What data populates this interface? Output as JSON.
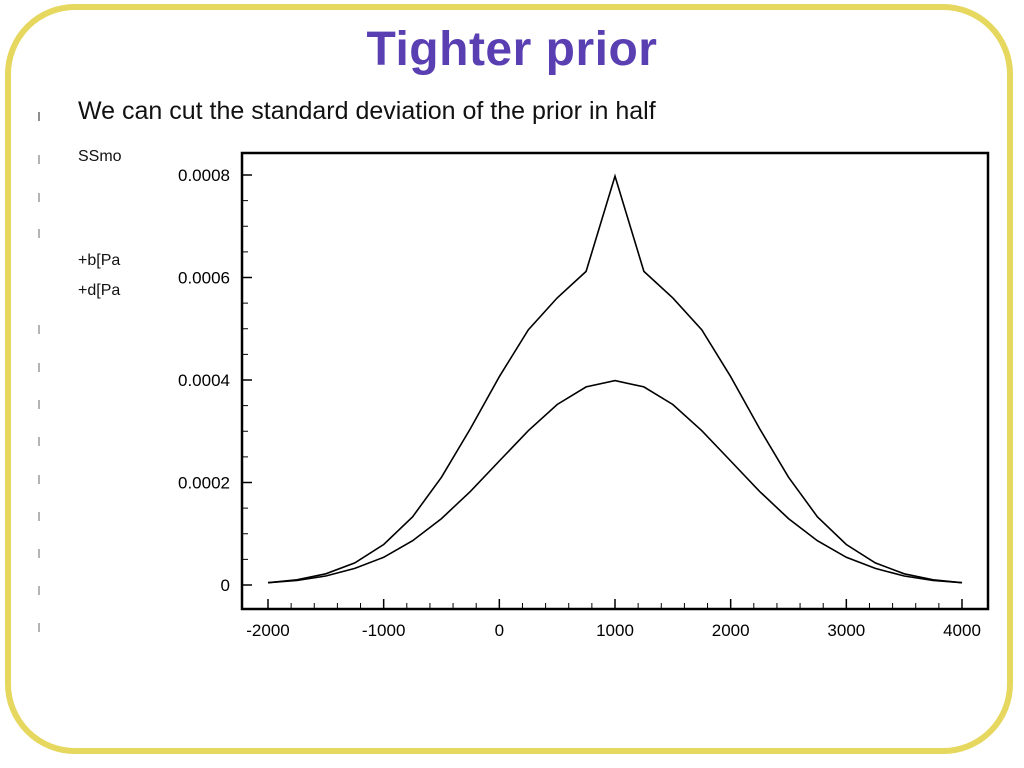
{
  "slide": {
    "title": "Tighter prior",
    "bullet_main": "We can cut the standard deviation of the prior in half",
    "fragments": [
      "SSmo",
      "+b[Pa",
      "+d[Pa"
    ]
  },
  "colors": {
    "title": "#5a3fb3",
    "frame": "#e6d75f",
    "line": "#000000"
  },
  "chart_data": {
    "type": "line",
    "title": "",
    "xlabel": "",
    "ylabel": "",
    "xlim": [
      -2000,
      4000
    ],
    "ylim": [
      0,
      0.0008
    ],
    "x_ticks": [
      -2000,
      -1000,
      0,
      1000,
      2000,
      3000,
      4000
    ],
    "x_tick_labels": [
      "-2000",
      "-1000",
      "0",
      "1000",
      "2000",
      "3000",
      "4000"
    ],
    "y_ticks": [
      0,
      0.0002,
      0.0004,
      0.0006,
      0.0008
    ],
    "y_tick_labels": [
      "0",
      "0.0002",
      "0.0004",
      "0.0006",
      "0.0008"
    ],
    "grid": false,
    "x": [
      -2000,
      -1750,
      -1500,
      -1250,
      -1000,
      -750,
      -500,
      -250,
      0,
      250,
      500,
      750,
      1000,
      1250,
      1500,
      1750,
      2000,
      2250,
      2500,
      2750,
      3000,
      3250,
      3500,
      3750,
      4000
    ],
    "series": [
      {
        "values": [
          4.4e-06,
          1.02e-05,
          2.19e-05,
          4.31e-05,
          7.9e-05,
          0.000133,
          0.0002103,
          0.0003051,
          0.0004065,
          0.000498,
          0.0005601,
          0.000612,
          0.0007979,
          0.000612,
          0.0005601,
          0.000498,
          0.0004065,
          0.0003051,
          0.0002103,
          0.000133,
          7.9e-05,
          4.31e-05,
          2.19e-05,
          1.02e-05,
          4.4e-06
        ]
      },
      {
        "values": [
          4.4e-06,
          8.8e-06,
          1.75e-05,
          3.24e-05,
          5.4e-05,
          8.64e-05,
          0.0001295,
          0.0001826,
          0.000242,
          0.0003011,
          0.0003521,
          0.0003866,
          0.0003989,
          0.0003866,
          0.0003521,
          0.0003011,
          0.000242,
          0.0001826,
          0.0001295,
          8.64e-05,
          5.4e-05,
          3.24e-05,
          1.75e-05,
          8.8e-06,
          4.4e-06
        ]
      }
    ]
  }
}
